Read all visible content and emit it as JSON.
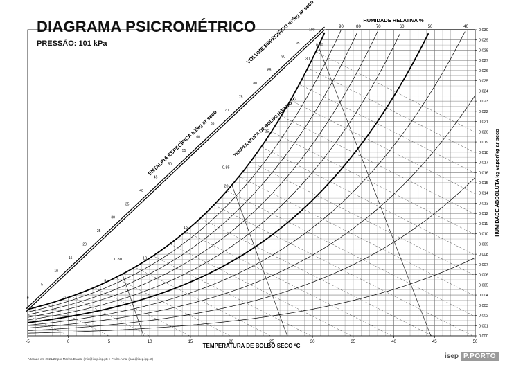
{
  "header": {
    "title": "DIAGRAMA PSICROMÉTRICO",
    "pressure": "PRESSÃO: 101 kPa"
  },
  "footer": {
    "note": "Alterado em 2021/22 por Marina Duarte (mic@isep.ipp.pt) e Pedro Arnal (paa@isep.ipp.pt)",
    "logo_isep": "isep",
    "logo_porto": "P.PORTO"
  },
  "chart_data": {
    "type": "line",
    "title": "DIAGRAMA PSICROMÉTRICO",
    "subtitle": "PRESSÃO: 101 kPa",
    "xlabel": "TEMPERATURA DE BOLBO SECO ºC",
    "ylabel_right": "HUMIDADE ABSOLUTA kg vapor/kg ar seco",
    "label_rh": "HUMIDADE RELATIVA %",
    "label_volume": "VOLUME ESPECÍFICO m³/kg ar seco",
    "label_enthalpy": "ENTALPIA ESPECÍFICA kJ/kg ar seco",
    "label_wetbulb": "TEMPERATURA DE BOLBO HÚMIDO ºC",
    "xlim": [
      -5,
      50
    ],
    "ylim": [
      0,
      0.03
    ],
    "x_ticks": [
      "-5",
      "0",
      "5",
      "10",
      "15",
      "20",
      "25",
      "30",
      "35",
      "40",
      "45",
      "50"
    ],
    "y_ticks": [
      "0.000",
      "0.001",
      "0.002",
      "0.003",
      "0.004",
      "0.005",
      "0.006",
      "0.007",
      "0.008",
      "0.009",
      "0.010",
      "0.011",
      "0.012",
      "0.013",
      "0.014",
      "0.015",
      "0.016",
      "0.017",
      "0.018",
      "0.019",
      "0.020",
      "0.021",
      "0.022",
      "0.023",
      "0.024",
      "0.025",
      "0.026",
      "0.027",
      "0.028",
      "0.029",
      "0.030"
    ],
    "rh_lines": [
      10,
      20,
      30,
      40,
      50,
      60,
      70,
      80,
      90,
      100
    ],
    "rh_top_labels": [
      "90",
      "80",
      "70",
      "60",
      "50",
      "40"
    ],
    "enthalpy_labels": [
      "0",
      "5",
      "10",
      "15",
      "20",
      "25",
      "30",
      "35",
      "40",
      "45",
      "50",
      "55",
      "60",
      "65",
      "70",
      "75",
      "80",
      "85",
      "90",
      "95",
      "100"
    ],
    "wetbulb_labels": [
      "0",
      "5",
      "10",
      "15",
      "20",
      "25",
      "30"
    ],
    "volume_labels": [
      "0.80",
      "0.85",
      "0.90"
    ],
    "volume_values": [
      0.8,
      0.85,
      0.9
    ],
    "grid": true
  }
}
